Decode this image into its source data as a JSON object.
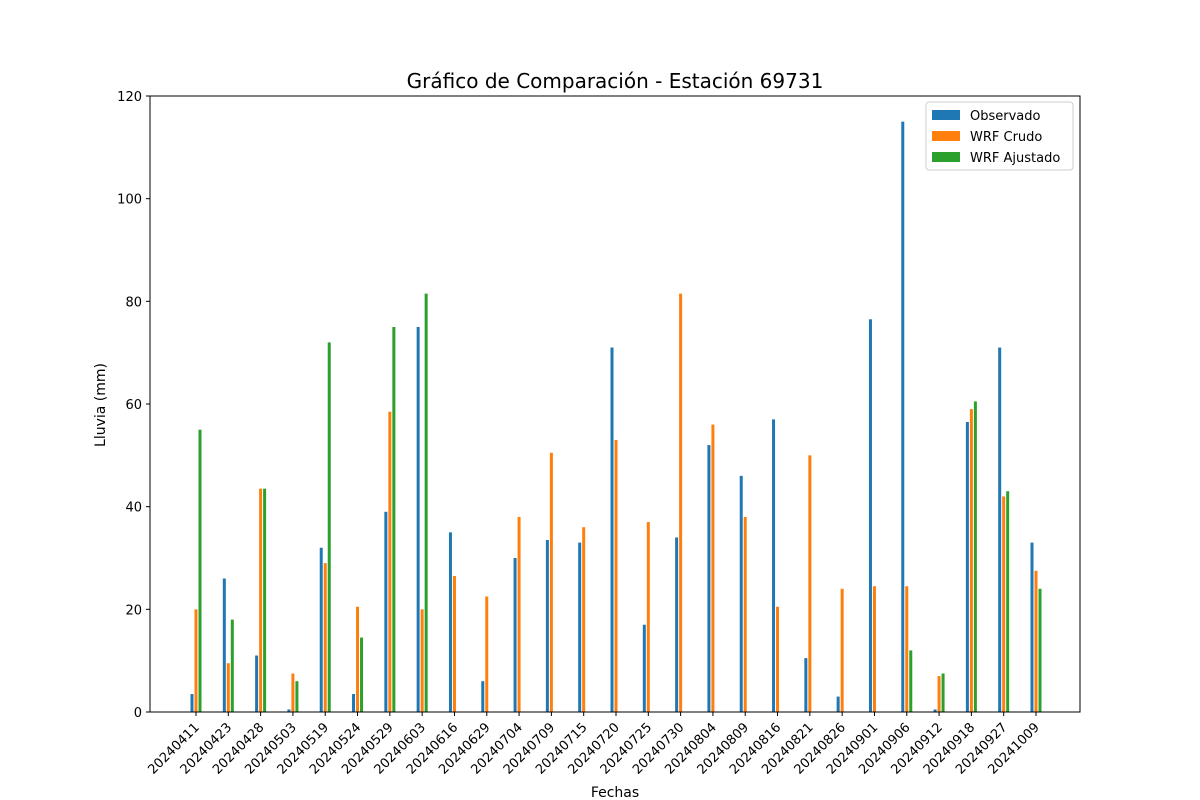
{
  "chart_data": {
    "type": "bar",
    "title": "Gráfico de Comparación - Estación 69731",
    "xlabel": "Fechas",
    "ylabel": "Lluvia (mm)",
    "ylim": [
      0,
      120
    ],
    "yticks": [
      0,
      20,
      40,
      60,
      80,
      100,
      120
    ],
    "categories": [
      "20240411",
      "20240423",
      "20240428",
      "20240503",
      "20240519",
      "20240524",
      "20240529",
      "20240603",
      "20240616",
      "20240629",
      "20240704",
      "20240709",
      "20240715",
      "20240720",
      "20240725",
      "20240730",
      "20240804",
      "20240809",
      "20240816",
      "20240821",
      "20240826",
      "20240901",
      "20240906",
      "20240912",
      "20240918",
      "20240927",
      "20241009"
    ],
    "grid": false,
    "legend_position": "top-right",
    "series": [
      {
        "name": "Observado",
        "color": "#1f77b4",
        "values": [
          3.5,
          26.0,
          11.0,
          0.5,
          32.0,
          3.5,
          39.0,
          75.0,
          35.0,
          6.0,
          30.0,
          33.5,
          33.0,
          71.0,
          17.0,
          34.0,
          52.0,
          46.0,
          57.0,
          10.5,
          3.0,
          76.5,
          115.0,
          0.5,
          56.5,
          71.0,
          33.0
        ]
      },
      {
        "name": "WRF Crudo",
        "color": "#ff7f0e",
        "values": [
          20.0,
          9.5,
          43.5,
          7.5,
          29.0,
          20.5,
          58.5,
          20.0,
          26.5,
          22.5,
          38.0,
          50.5,
          36.0,
          53.0,
          37.0,
          81.5,
          56.0,
          38.0,
          20.5,
          50.0,
          24.0,
          24.5,
          24.5,
          7.0,
          59.0,
          42.0,
          27.5
        ]
      },
      {
        "name": "WRF Ajustado",
        "color": "#2ca02c",
        "values": [
          55.0,
          18.0,
          43.5,
          6.0,
          72.0,
          14.5,
          75.0,
          81.5,
          0.0,
          0.0,
          0.0,
          0.0,
          0.0,
          0.0,
          0.0,
          0.0,
          0.0,
          0.0,
          0.0,
          0.0,
          0.0,
          0.0,
          12.0,
          7.5,
          60.5,
          43.0,
          24.0
        ]
      }
    ]
  }
}
